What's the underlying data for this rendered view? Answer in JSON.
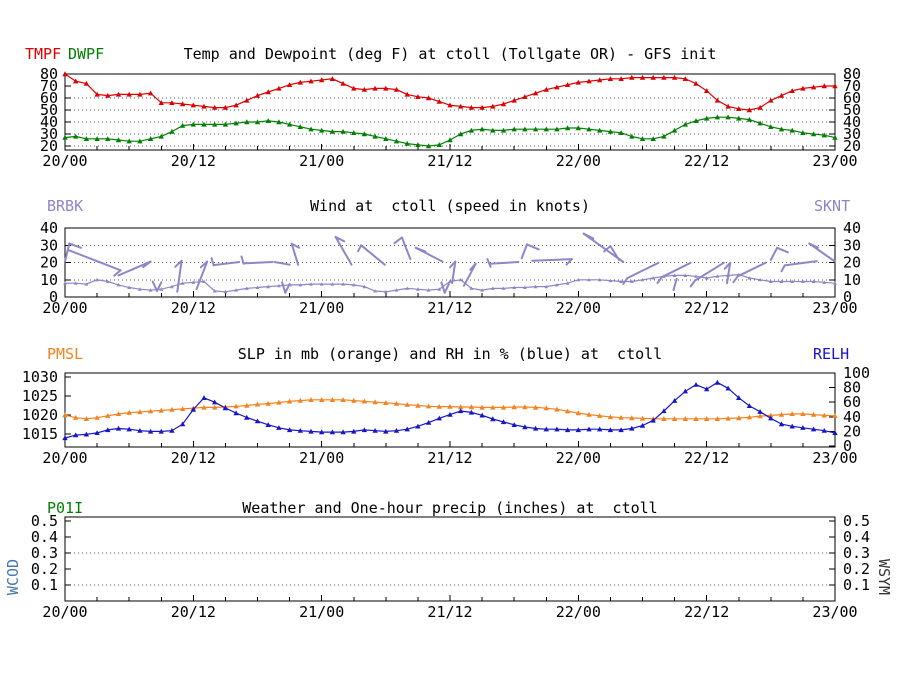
{
  "x_axis": {
    "hours_total": 72,
    "tick_hours": [
      0,
      12,
      24,
      36,
      48,
      60,
      72
    ],
    "tick_labels": [
      "20/00",
      "20/12",
      "21/00",
      "21/12",
      "22/00",
      "22/12",
      "23/00"
    ],
    "minor_tick_interval_hours": 3
  },
  "colors": {
    "axis": "#000000",
    "grid_dots": "#555555",
    "temp_red": "#dd0000",
    "dew_green": "#008000",
    "wind_purple": "#9184c8",
    "slp_orange": "#f5821f",
    "rh_blue": "#1616c8",
    "precip_green": "#008000",
    "wcod_blue": "#4477aa",
    "wsym_gray": "#333333"
  },
  "chart_data": [
    {
      "type": "line",
      "title": "Temp and Dewpoint (deg F) at ctoll (Tollgate OR) - GFS init",
      "station": "ctoll (Tollgate OR)",
      "model": "GFS init",
      "ylim": [
        20,
        80
      ],
      "y_left": {
        "ticks": [
          20,
          30,
          40,
          50,
          60,
          70,
          80
        ],
        "labels": [
          "20",
          "30",
          "40",
          "50",
          "60",
          "70",
          "80"
        ]
      },
      "grid": [
        20,
        30,
        40,
        50,
        60
      ],
      "series": [
        {
          "name": "TMPF",
          "color": "#dd0000",
          "axis": "left",
          "values": [
            80,
            74,
            72,
            63,
            62,
            63,
            63,
            63,
            64,
            56,
            56,
            55,
            54,
            53,
            52,
            52,
            54,
            58,
            62,
            65,
            68,
            71,
            73,
            74,
            75,
            76,
            72,
            68,
            67,
            68,
            68,
            67,
            63,
            61,
            60,
            57,
            54,
            53,
            52,
            52,
            53,
            55,
            58,
            61,
            64,
            67,
            69,
            71,
            73,
            74,
            75,
            76,
            76,
            77,
            77,
            77,
            77,
            77,
            76,
            72,
            66,
            58,
            53,
            51,
            50,
            52,
            58,
            62,
            66,
            68,
            69,
            70,
            70
          ]
        },
        {
          "name": "DWPF",
          "color": "#008000",
          "axis": "left",
          "values": [
            27,
            28,
            26,
            26,
            26,
            25,
            24,
            24,
            26,
            28,
            32,
            37,
            38,
            38,
            38,
            38,
            39,
            40,
            40,
            41,
            40,
            38,
            36,
            34,
            33,
            32,
            32,
            31,
            30,
            28,
            26,
            24,
            22,
            21,
            20,
            21,
            25,
            30,
            33,
            34,
            33,
            33,
            34,
            34,
            34,
            34,
            34,
            35,
            35,
            34,
            33,
            32,
            31,
            28,
            26,
            26,
            28,
            33,
            38,
            41,
            43,
            44,
            44,
            43,
            42,
            39,
            36,
            34,
            33,
            31,
            30,
            29,
            27
          ]
        }
      ]
    },
    {
      "type": "line",
      "title": "Wind at  ctoll (speed in knots)",
      "barbs_label": "BRBK",
      "ylim": [
        0,
        40
      ],
      "y_left": {
        "ticks": [
          0,
          10,
          20,
          30,
          40
        ],
        "labels": [
          "0",
          "10",
          "20",
          "30",
          "40"
        ]
      },
      "grid": [
        10,
        20,
        30
      ],
      "series": [
        {
          "name": "SKNT",
          "color": "#9184c8",
          "axis": "left",
          "values": [
            8,
            8,
            7.5,
            10,
            9,
            7,
            5.5,
            4.5,
            4,
            4.5,
            6,
            8,
            8.5,
            9,
            3.5,
            3,
            4,
            5,
            5.5,
            6,
            6.5,
            7,
            7,
            7.5,
            7.5,
            7.5,
            7.5,
            7,
            6,
            3.5,
            3,
            4,
            5,
            4.5,
            4,
            4.5,
            9,
            10,
            5,
            4,
            5,
            5,
            5.5,
            5.5,
            6,
            6,
            7,
            8,
            10,
            10,
            10,
            9.5,
            9,
            9,
            10,
            11,
            12,
            12.5,
            12.5,
            12,
            11,
            12,
            12.5,
            13,
            11,
            10,
            9,
            9,
            9,
            9,
            9,
            8.5,
            8
          ]
        }
      ],
      "barbs": [
        {
          "s": [
            0.0,
            20.5,
            0.4,
            31
          ],
          "t": [
            [
              0.4,
              31,
              1.5,
              28.5
            ]
          ]
        },
        {
          "s": [
            0.4,
            27,
            5.2,
            15.5
          ],
          "t": [
            [
              5.2,
              15.5,
              4.6,
              12.3
            ]
          ]
        },
        {
          "s": [
            5.0,
            12.5,
            8.0,
            20.5
          ],
          "t": [
            [
              8.0,
              20.5,
              7.3,
              17.3
            ]
          ]
        },
        {
          "s": [
            8.2,
            9,
            8.6,
            3.5
          ],
          "t": [
            [
              8.6,
              3.5,
              9.0,
              8.5
            ]
          ]
        },
        {
          "s": [
            10.5,
            3,
            10.9,
            21
          ],
          "t": [
            [
              10.9,
              21,
              10.3,
              17.5
            ]
          ]
        },
        {
          "s": [
            12.3,
            4.5,
            13.3,
            20.5
          ],
          "t": [
            [
              13.3,
              20.5,
              12.7,
              17.3
            ]
          ]
        },
        {
          "s": [
            13.7,
            22.5,
            13.9,
            18.3
          ],
          "t": []
        },
        {
          "s": [
            13.9,
            18.5,
            16.3,
            20.3
          ],
          "t": []
        },
        {
          "s": [
            16.5,
            23.5,
            16.7,
            19.3
          ],
          "t": []
        },
        {
          "s": [
            16.7,
            19.5,
            19.4,
            20.3
          ],
          "t": []
        },
        {
          "s": [
            19.6,
            20.3,
            21.0,
            18.7
          ],
          "t": []
        },
        {
          "s": [
            20.3,
            8.5,
            20.6,
            2.5
          ],
          "t": [
            [
              20.6,
              2.5,
              21.0,
              7.5
            ]
          ]
        },
        {
          "s": [
            21.2,
            30.9,
            21.8,
            18.7
          ],
          "t": [
            [
              21.2,
              30.9,
              21.9,
              28.6
            ]
          ]
        },
        {
          "s": [
            25.3,
            34.8,
            26.8,
            18.7
          ],
          "t": [
            [
              25.3,
              34.8,
              26.1,
              32.3
            ]
          ]
        },
        {
          "s": [
            27.7,
            30,
            29.9,
            18.7
          ],
          "t": [
            [
              27.7,
              30,
              27.4,
              26.5
            ]
          ]
        },
        {
          "s": [
            31.5,
            34.5,
            32.3,
            22
          ],
          "t": [
            [
              31.5,
              34.5,
              30.8,
              31.2
            ]
          ]
        },
        {
          "s": [
            32.8,
            28.5,
            35.3,
            20.5
          ],
          "t": [
            [
              32.8,
              28.5,
              33.7,
              26.4
            ]
          ]
        },
        {
          "s": [
            35.2,
            8.5,
            35.5,
            2.5
          ],
          "t": [
            [
              35.5,
              2.5,
              35.9,
              7.5
            ]
          ]
        },
        {
          "s": [
            36.2,
            8,
            36.5,
            20.5
          ],
          "t": [
            [
              36.5,
              20.5,
              36.0,
              17.2
            ]
          ]
        },
        {
          "s": [
            37.3,
            6.5,
            38.4,
            19.3
          ],
          "t": [
            [
              38.4,
              19.3,
              37.9,
              15.8
            ]
          ]
        },
        {
          "s": [
            39.5,
            22,
            39.8,
            17.5
          ],
          "t": []
        },
        {
          "s": [
            39.8,
            19.3,
            42.4,
            20.3
          ],
          "t": []
        },
        {
          "s": [
            42.7,
            22.5,
            43.2,
            30.5
          ],
          "t": [
            [
              43.2,
              30.5,
              44.3,
              27.6
            ]
          ]
        },
        {
          "s": [
            43.7,
            21,
            47.4,
            22
          ],
          "t": [
            [
              47.4,
              22,
              46.9,
              18.8
            ]
          ]
        },
        {
          "s": [
            48.5,
            36.7,
            52.2,
            20.3
          ],
          "t": [
            [
              48.5,
              36.7,
              49.4,
              33.9
            ]
          ]
        },
        {
          "s": [
            51.0,
            29.5,
            51.8,
            21.5
          ],
          "t": [
            [
              51.0,
              29.5,
              50.4,
              26.4
            ]
          ]
        },
        {
          "s": [
            52.6,
            11,
            55.5,
            19.8
          ],
          "t": [
            [
              52.6,
              11,
              52.2,
              7.6
            ]
          ]
        },
        {
          "s": [
            55.8,
            11.5,
            58.5,
            19.8
          ],
          "t": [
            [
              55.8,
              11.5,
              55.4,
              8.1
            ]
          ]
        },
        {
          "s": [
            56.9,
            4,
            57.2,
            10.5
          ],
          "t": []
        },
        {
          "s": [
            58.9,
            9.5,
            61.6,
            19.8
          ],
          "t": [
            [
              58.9,
              9.5,
              58.5,
              6.1
            ]
          ]
        },
        {
          "s": [
            61.9,
            8,
            62.2,
            19.8
          ],
          "t": [
            [
              62.2,
              19.8,
              61.7,
              16.4
            ]
          ]
        },
        {
          "s": [
            62.9,
            12,
            65.5,
            19.8
          ],
          "t": [
            [
              62.9,
              12,
              62.5,
              8.6
            ]
          ]
        },
        {
          "s": [
            66.0,
            21.5,
            66.6,
            28.5
          ],
          "t": [
            [
              66.6,
              28.5,
              67.6,
              25.9
            ]
          ]
        },
        {
          "s": [
            67.3,
            18.3,
            70.3,
            20.8
          ],
          "t": [
            [
              67.3,
              18.3,
              67.0,
              14.9
            ]
          ]
        },
        {
          "s": [
            69.6,
            31,
            72.0,
            20.5
          ],
          "t": [
            [
              69.6,
              31,
              70.4,
              28.7
            ]
          ]
        }
      ]
    },
    {
      "type": "line",
      "title": "SLP in mb (orange) and RH in % (blue) at  ctoll",
      "y_left": {
        "ticks": [
          1015,
          1020,
          1025,
          1030
        ],
        "labels": [
          "1015",
          "1020",
          "1025",
          "1030"
        ]
      },
      "y_right": {
        "ticks": [
          0,
          20,
          40,
          60,
          80,
          100
        ],
        "labels": [
          "0",
          "20",
          "40",
          "60",
          "80",
          "100"
        ]
      },
      "grid": [],
      "series": [
        {
          "name": "PMSL",
          "color": "#f5821f",
          "axis": "left",
          "values": [
            1020.0,
            1019.3,
            1019.0,
            1019.3,
            1019.8,
            1020.3,
            1020.6,
            1020.8,
            1021.0,
            1021.2,
            1021.4,
            1021.6,
            1021.8,
            1022.0,
            1022.0,
            1022.1,
            1022.3,
            1022.5,
            1022.8,
            1023.0,
            1023.3,
            1023.6,
            1023.8,
            1024.0,
            1024.0,
            1024.0,
            1024.0,
            1023.8,
            1023.6,
            1023.4,
            1023.2,
            1023.0,
            1022.7,
            1022.5,
            1022.3,
            1022.2,
            1022.2,
            1022.1,
            1022.1,
            1022.0,
            1022.0,
            1022.0,
            1022.1,
            1022.1,
            1022.0,
            1021.8,
            1021.5,
            1021.0,
            1020.5,
            1020.1,
            1019.8,
            1019.5,
            1019.3,
            1019.2,
            1019.1,
            1019.0,
            1019.0,
            1019.0,
            1019.0,
            1019.0,
            1019.0,
            1019.0,
            1019.1,
            1019.2,
            1019.4,
            1019.7,
            1019.9,
            1020.1,
            1020.3,
            1020.3,
            1020.1,
            1019.9,
            1019.8
          ]
        },
        {
          "name": "RELH",
          "color": "#1616c8",
          "axis": "right",
          "values": [
            11,
            15,
            16,
            18,
            22,
            24,
            23,
            21,
            20,
            20,
            21,
            30,
            50,
            66,
            60,
            52,
            45,
            39,
            34,
            29,
            25,
            22,
            21,
            20,
            19,
            19,
            19,
            20,
            22,
            21,
            20,
            21,
            23,
            27,
            32,
            38,
            43,
            48,
            46,
            42,
            37,
            33,
            29,
            26,
            24,
            23,
            23,
            22,
            22,
            23,
            23,
            22,
            22,
            24,
            28,
            35,
            48,
            62,
            75,
            84,
            78,
            87,
            79,
            66,
            55,
            47,
            38,
            30,
            27,
            25,
            23,
            21,
            18
          ]
        }
      ]
    },
    {
      "type": "line",
      "title": "Weather and One-hour precip (inches) at  ctoll",
      "precip_label": "P01I",
      "wcod_label": "WCOD",
      "wsym_label": "WSYM",
      "ylim": [
        0.0,
        0.5
      ],
      "y_left": {
        "ticks": [
          0.1,
          0.2,
          0.3,
          0.4,
          0.5
        ],
        "labels": [
          "0.1",
          "0.2",
          "0.3",
          "0.4",
          "0.5"
        ]
      },
      "grid": [
        0.1,
        0.3
      ],
      "series": []
    }
  ]
}
